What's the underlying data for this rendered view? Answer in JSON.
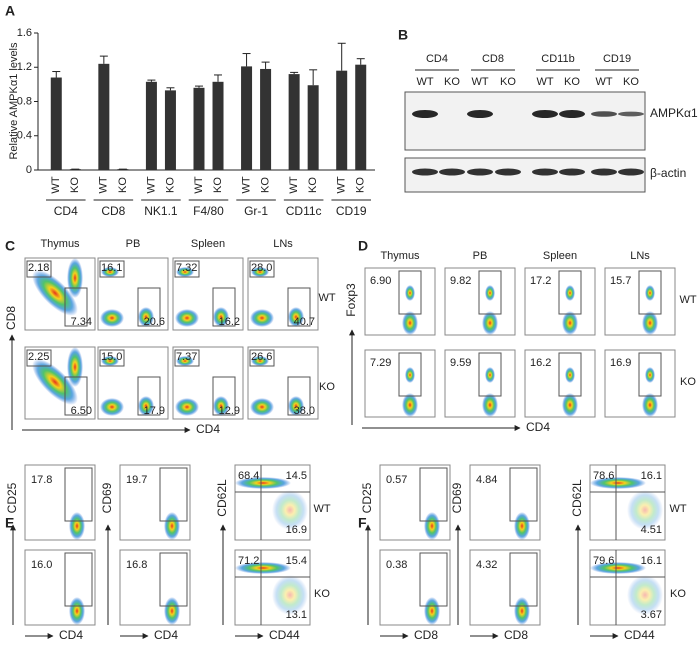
{
  "chart_data": {
    "type": "bar",
    "panel": "A",
    "y_label": "Relative AMPKα1 levels",
    "categories": [
      "WT",
      "KO",
      "WT",
      "KO",
      "WT",
      "KO",
      "WT",
      "KO",
      "WT",
      "KO",
      "WT",
      "KO",
      "WT",
      "KO"
    ],
    "groups": [
      "CD4",
      "CD8",
      "NK1.1",
      "F4/80",
      "Gr-1",
      "CD11c",
      "CD19"
    ],
    "values": [
      1.08,
      0.01,
      1.24,
      0.01,
      1.03,
      0.93,
      0.96,
      1.03,
      1.21,
      1.18,
      1.12,
      0.99,
      1.16,
      1.23
    ],
    "errors": [
      0.07,
      0,
      0.09,
      0,
      0.02,
      0.03,
      0.02,
      0.08,
      0.15,
      0.08,
      0.02,
      0.18,
      0.32,
      0.07
    ],
    "color": "#333333",
    "ylim": [
      0,
      1.6
    ],
    "yticks": [
      0,
      0.4,
      0.8,
      1.2,
      1.6
    ]
  },
  "blot": {
    "panel": "B",
    "groups": [
      "CD4",
      "CD8",
      "CD11b",
      "CD19"
    ],
    "lanes": [
      "WT",
      "KO",
      "WT",
      "KO",
      "WT",
      "KO",
      "WT",
      "KO"
    ],
    "bands": [
      "AMPKα1",
      "β-actin"
    ]
  },
  "panel_c": {
    "panel": "C",
    "columns": [
      "Thymus",
      "PB",
      "Spleen",
      "LNs"
    ],
    "rows": [
      "WT",
      "KO"
    ],
    "y_axis": "CD8",
    "x_axis": "CD4",
    "values": [
      [
        [
          "2.18",
          "7.34"
        ],
        [
          "16.1",
          "20.6"
        ],
        [
          "7.32",
          "16.2"
        ],
        [
          "28.0",
          "40.7"
        ]
      ],
      [
        [
          "2.25",
          "6.50"
        ],
        [
          "15.0",
          "17.9"
        ],
        [
          "7.37",
          "12.9"
        ],
        [
          "26.6",
          "38.0"
        ]
      ]
    ]
  },
  "panel_d": {
    "panel": "D",
    "columns": [
      "Thymus",
      "PB",
      "Spleen",
      "LNs"
    ],
    "rows": [
      "WT",
      "KO"
    ],
    "y_axis": "Foxp3",
    "x_axis": "CD4",
    "values": [
      [
        [
          "6.90"
        ],
        [
          "9.82"
        ],
        [
          "17.2"
        ],
        [
          "15.7"
        ]
      ],
      [
        [
          "7.29"
        ],
        [
          "9.59"
        ],
        [
          "16.2"
        ],
        [
          "16.9"
        ]
      ]
    ]
  },
  "panel_e": {
    "panel": "E",
    "rows": [
      "WT",
      "KO"
    ],
    "plots": [
      {
        "y_axis": "CD25",
        "x_axis": "CD4",
        "values": [
          [
            "17.8"
          ],
          [
            "16.0"
          ]
        ]
      },
      {
        "y_axis": "CD69",
        "x_axis": "CD4",
        "values": [
          [
            "19.7"
          ],
          [
            "16.8"
          ]
        ]
      },
      {
        "y_axis": "CD62L",
        "x_axis": "CD44",
        "values": [
          [
            "68.4",
            "14.5",
            "16.9"
          ],
          [
            "71.2",
            "15.4",
            "13.1"
          ]
        ]
      }
    ]
  },
  "panel_f": {
    "panel": "F",
    "rows": [
      "WT",
      "KO"
    ],
    "plots": [
      {
        "y_axis": "CD25",
        "x_axis": "CD8",
        "values": [
          [
            "0.57"
          ],
          [
            "0.38"
          ]
        ]
      },
      {
        "y_axis": "CD69",
        "x_axis": "CD8",
        "values": [
          [
            "4.84"
          ],
          [
            "4.32"
          ]
        ]
      },
      {
        "y_axis": "CD62L",
        "x_axis": "CD44",
        "values": [
          [
            "78.6",
            "16.1",
            "4.51"
          ],
          [
            "79.6",
            "16.1",
            "3.67"
          ]
        ]
      }
    ]
  }
}
